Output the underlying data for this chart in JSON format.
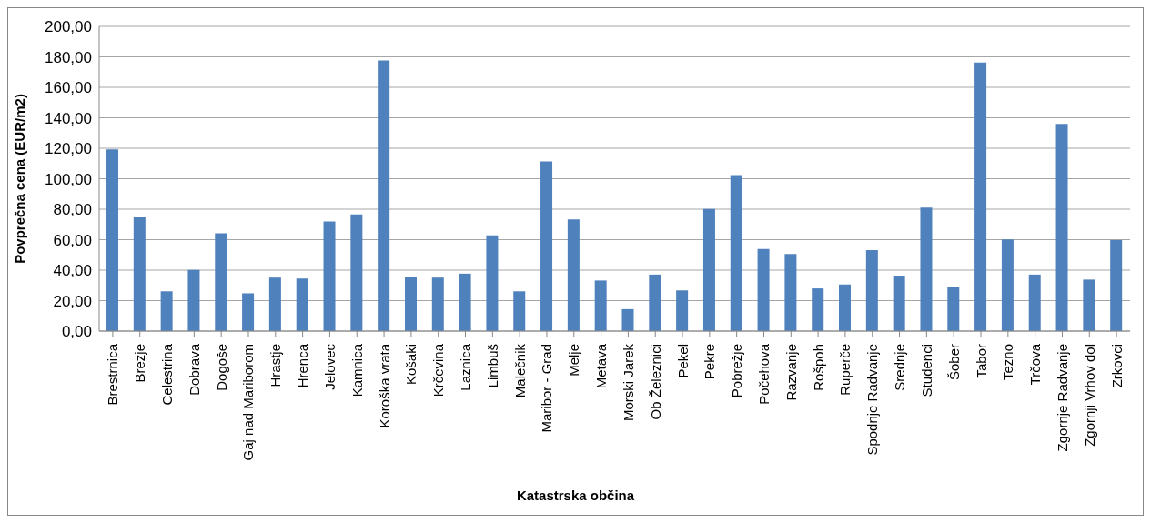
{
  "chart_data": {
    "type": "bar",
    "xlabel": "Katastrska občina",
    "ylabel": "Povprečna cena (EUR/m2)",
    "categories": [
      "Brestrnica",
      "Brezje",
      "Celestrina",
      "Dobrava",
      "Dogoše",
      "Gaj nad Mariborom",
      "Hrastje",
      "Hrenca",
      "Jelovec",
      "Kamnica",
      "Koroška vrata",
      "Košaki",
      "Krčevina",
      "Laznica",
      "Limbuš",
      "Malečnik",
      "Maribor - Grad",
      "Melje",
      "Metava",
      "Morski Jarek",
      "Ob Železnici",
      "Pekel",
      "Pekre",
      "Pobrežje",
      "Počehova",
      "Razvanje",
      "Rošpoh",
      "Ruperče",
      "Spodnje Radvanje",
      "Srednje",
      "Studenci",
      "Šober",
      "Tabor",
      "Tezno",
      "Trčova",
      "Zgornje Radvanje",
      "Zgornji Vrhov dol",
      "Zrkovci"
    ],
    "values": [
      119.2,
      74.6,
      26.1,
      40.1,
      64.2,
      24.8,
      35.1,
      34.5,
      72,
      76.5,
      177.6,
      35.8,
      35.1,
      37.7,
      62.9,
      26.1,
      111.4,
      73.3,
      33.2,
      14.4,
      37.1,
      26.7,
      80.2,
      102.4,
      53.9,
      50.6,
      28,
      30.6,
      53.2,
      36.4,
      81,
      28.7,
      176.3,
      60.1,
      37.1,
      136,
      33.8,
      59.7
    ],
    "color": "#4f81bd",
    "ylim": [
      0,
      200
    ],
    "yticks": [
      {
        "value": 0,
        "label": "0,00"
      },
      {
        "value": 20,
        "label": "20,00"
      },
      {
        "value": 40,
        "label": "40,00"
      },
      {
        "value": 60,
        "label": "60,00"
      },
      {
        "value": 80,
        "label": "80,00"
      },
      {
        "value": 100,
        "label": "100,00"
      },
      {
        "value": 120,
        "label": "120,00"
      },
      {
        "value": 140,
        "label": "140,00"
      },
      {
        "value": 160,
        "label": "160,00"
      },
      {
        "value": 180,
        "label": "180,00"
      },
      {
        "value": 200,
        "label": "200,00"
      }
    ],
    "grid": "y",
    "legend": false
  }
}
